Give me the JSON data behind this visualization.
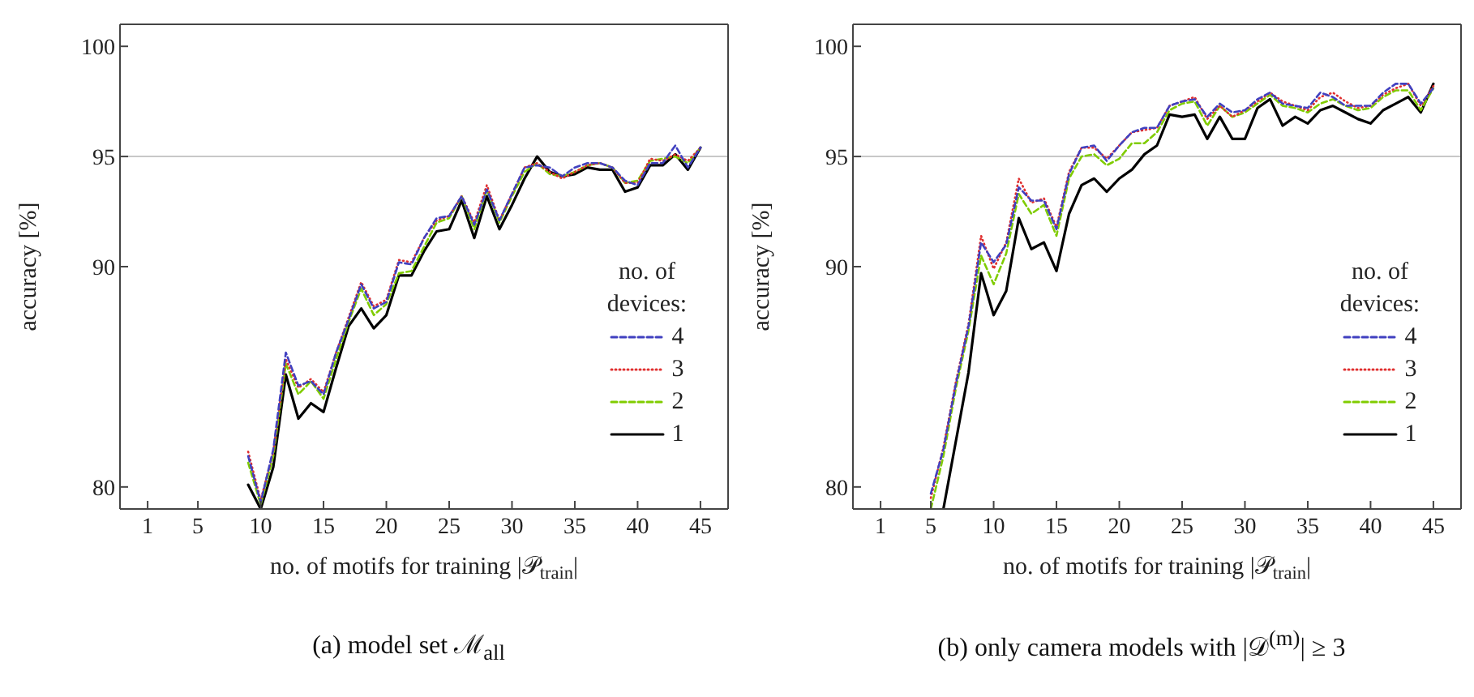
{
  "chart_data": [
    {
      "type": "line",
      "title": "(a) model set ℳ$_{all}$",
      "xlabel": "no. of motifs for training |𝒫$_{train}$|",
      "ylabel": "accuracy [%]",
      "legend_title": "no. of devices:",
      "legend": "bottom right",
      "marker": "none",
      "xlim": [
        -1.2,
        47.2
      ],
      "xticks": [
        1,
        5,
        10,
        15,
        20,
        25,
        30,
        35,
        40,
        45
      ],
      "ylim": [
        79,
        101
      ],
      "yticks": [
        80,
        90,
        95,
        100
      ],
      "ref_lines": [
        {
          "axis": "y",
          "value": 95,
          "color": "#c8c8c8"
        }
      ],
      "series": [
        {
          "name": "4",
          "color": "#4040c0",
          "line_style": "dashed",
          "x": [
            9,
            10,
            11,
            12,
            13,
            14,
            15,
            16,
            17,
            18,
            19,
            20,
            21,
            22,
            23,
            24,
            25,
            26,
            27,
            28,
            29,
            30,
            31,
            32,
            33,
            34,
            35,
            36,
            37,
            38,
            39,
            40,
            41,
            42,
            43,
            44,
            45
          ],
          "values": [
            81.4,
            79.3,
            81.7,
            86.1,
            84.6,
            84.8,
            84.2,
            86.1,
            87.6,
            89.2,
            88.1,
            88.4,
            90.2,
            90.1,
            91.3,
            92.2,
            92.3,
            93.2,
            91.9,
            93.5,
            92.1,
            93.3,
            94.5,
            94.6,
            94.5,
            94.1,
            94.5,
            94.7,
            94.7,
            94.5,
            93.9,
            93.7,
            94.7,
            94.7,
            95.5,
            94.5,
            95.4
          ]
        },
        {
          "name": "3",
          "color": "#e03030",
          "line_style": "dotted",
          "x": [
            9,
            10,
            11,
            12,
            13,
            14,
            15,
            16,
            17,
            18,
            19,
            20,
            21,
            22,
            23,
            24,
            25,
            26,
            27,
            28,
            29,
            30,
            31,
            32,
            33,
            34,
            35,
            36,
            37,
            38,
            39,
            40,
            41,
            42,
            43,
            44,
            45
          ],
          "values": [
            81.6,
            79.4,
            81.6,
            85.8,
            84.5,
            84.9,
            84.3,
            86.1,
            87.7,
            89.3,
            88.2,
            88.5,
            90.3,
            90.2,
            91.3,
            92.1,
            92.3,
            93.2,
            92.0,
            93.7,
            92.1,
            93.3,
            94.5,
            94.7,
            94.3,
            94.0,
            94.3,
            94.6,
            94.7,
            94.5,
            93.8,
            93.8,
            94.9,
            94.8,
            95.1,
            94.8,
            95.4
          ]
        },
        {
          "name": "2",
          "color": "#80cc00",
          "line_style": "dashed",
          "x": [
            9,
            10,
            11,
            12,
            13,
            14,
            15,
            16,
            17,
            18,
            19,
            20,
            21,
            22,
            23,
            24,
            25,
            26,
            27,
            28,
            29,
            30,
            31,
            32,
            33,
            34,
            35,
            36,
            37,
            38,
            39,
            40,
            41,
            42,
            43,
            44,
            45
          ],
          "values": [
            81.1,
            79.2,
            81.4,
            85.6,
            84.2,
            84.8,
            84.0,
            85.8,
            87.5,
            89.0,
            87.8,
            88.3,
            89.7,
            89.8,
            90.9,
            92.0,
            92.2,
            93.2,
            91.7,
            93.5,
            92.0,
            93.2,
            94.3,
            94.7,
            94.2,
            94.1,
            94.3,
            94.6,
            94.7,
            94.5,
            93.8,
            93.9,
            94.8,
            94.9,
            95.0,
            94.7,
            95.4
          ]
        },
        {
          "name": "1",
          "color": "#000000",
          "line_style": "solid",
          "x": [
            9,
            10,
            11,
            12,
            13,
            14,
            15,
            16,
            17,
            18,
            19,
            20,
            21,
            22,
            23,
            24,
            25,
            26,
            27,
            28,
            29,
            30,
            31,
            32,
            33,
            34,
            35,
            36,
            37,
            38,
            39,
            40,
            41,
            42,
            43,
            44,
            45
          ],
          "values": [
            80.1,
            79.0,
            80.9,
            85.1,
            83.1,
            83.8,
            83.4,
            85.4,
            87.3,
            88.1,
            87.2,
            87.8,
            89.6,
            89.6,
            90.7,
            91.6,
            91.7,
            93.0,
            91.3,
            93.2,
            91.7,
            92.8,
            94.0,
            95.0,
            94.3,
            94.1,
            94.2,
            94.5,
            94.4,
            94.4,
            93.4,
            93.6,
            94.6,
            94.6,
            95.1,
            94.4,
            95.4
          ]
        }
      ]
    },
    {
      "type": "line",
      "title": "(b) only camera models with |𝒟$^{(m)}$| ≥ 3",
      "xlabel": "no. of motifs for training |𝒫$_{train}$|",
      "ylabel": "accuracy [%]",
      "legend_title": "no. of devices:",
      "legend": "bottom right",
      "marker": "none",
      "xlim": [
        -1.2,
        47.2
      ],
      "xticks": [
        1,
        5,
        10,
        15,
        20,
        25,
        30,
        35,
        40,
        45
      ],
      "ylim": [
        79,
        101
      ],
      "yticks": [
        80,
        90,
        95,
        100
      ],
      "ref_lines": [
        {
          "axis": "y",
          "value": 95,
          "color": "#c8c8c8"
        }
      ],
      "series": [
        {
          "name": "4",
          "color": "#4040c0",
          "line_style": "dashed",
          "x": [
            5,
            6,
            7,
            8,
            9,
            10,
            11,
            12,
            13,
            14,
            15,
            16,
            17,
            18,
            19,
            20,
            21,
            22,
            23,
            24,
            25,
            26,
            27,
            28,
            29,
            30,
            31,
            32,
            33,
            34,
            35,
            36,
            37,
            38,
            39,
            40,
            41,
            42,
            43,
            44,
            45
          ],
          "values": [
            79.7,
            81.7,
            84.7,
            87.3,
            91.1,
            90.2,
            91.0,
            93.6,
            93.0,
            93.0,
            91.7,
            94.2,
            95.4,
            95.5,
            94.8,
            95.5,
            96.1,
            96.3,
            96.3,
            97.3,
            97.5,
            97.6,
            96.8,
            97.4,
            97.0,
            97.1,
            97.6,
            97.9,
            97.4,
            97.3,
            97.2,
            97.9,
            97.7,
            97.3,
            97.3,
            97.3,
            97.9,
            98.3,
            98.3,
            97.4,
            98.1
          ]
        },
        {
          "name": "3",
          "color": "#e03030",
          "line_style": "dotted",
          "x": [
            5,
            6,
            7,
            8,
            9,
            10,
            11,
            12,
            13,
            14,
            15,
            16,
            17,
            18,
            19,
            20,
            21,
            22,
            23,
            24,
            25,
            26,
            27,
            28,
            29,
            30,
            31,
            32,
            33,
            34,
            35,
            36,
            37,
            38,
            39,
            40,
            41,
            42,
            43,
            44,
            45
          ],
          "values": [
            79.5,
            81.8,
            84.8,
            87.4,
            91.4,
            89.9,
            91.1,
            94.0,
            92.9,
            93.1,
            91.8,
            94.3,
            95.4,
            95.4,
            94.9,
            95.5,
            96.1,
            96.2,
            96.3,
            97.3,
            97.5,
            97.7,
            96.7,
            97.3,
            96.8,
            97.1,
            97.5,
            97.9,
            97.5,
            97.3,
            97.1,
            97.7,
            97.9,
            97.5,
            97.2,
            97.3,
            97.8,
            98.1,
            98.3,
            97.3,
            98.2
          ]
        },
        {
          "name": "2",
          "color": "#80cc00",
          "line_style": "dashed",
          "x": [
            5,
            6,
            7,
            8,
            9,
            10,
            11,
            12,
            13,
            14,
            15,
            16,
            17,
            18,
            19,
            20,
            21,
            22,
            23,
            24,
            25,
            26,
            27,
            28,
            29,
            30,
            31,
            32,
            33,
            34,
            35,
            36,
            37,
            38,
            39,
            40,
            41,
            42,
            43,
            44,
            45
          ],
          "values": [
            79.0,
            81.4,
            84.5,
            87.1,
            90.5,
            89.2,
            90.6,
            93.3,
            92.4,
            92.8,
            91.4,
            94.0,
            95.0,
            95.1,
            94.6,
            94.9,
            95.6,
            95.6,
            96.1,
            97.1,
            97.4,
            97.5,
            96.4,
            97.3,
            96.8,
            97.0,
            97.4,
            97.8,
            97.3,
            97.2,
            97.0,
            97.4,
            97.6,
            97.3,
            97.1,
            97.2,
            97.7,
            98.0,
            98.0,
            97.1,
            98.1
          ]
        },
        {
          "name": "1",
          "color": "#000000",
          "line_style": "solid",
          "x": [
            6,
            7,
            8,
            9,
            10,
            11,
            12,
            13,
            14,
            15,
            16,
            17,
            18,
            19,
            20,
            21,
            22,
            23,
            24,
            25,
            26,
            27,
            28,
            29,
            30,
            31,
            32,
            33,
            34,
            35,
            36,
            37,
            38,
            39,
            40,
            41,
            42,
            43,
            44,
            45
          ],
          "values": [
            79.0,
            82.1,
            85.2,
            89.7,
            87.8,
            88.9,
            92.2,
            90.8,
            91.1,
            89.8,
            92.4,
            93.7,
            94.0,
            93.4,
            94.0,
            94.4,
            95.1,
            95.5,
            96.9,
            96.8,
            96.9,
            95.8,
            96.8,
            95.8,
            95.8,
            97.2,
            97.6,
            96.4,
            96.8,
            96.5,
            97.1,
            97.3,
            97.0,
            96.7,
            96.5,
            97.1,
            97.4,
            97.7,
            97.0,
            98.3
          ]
        }
      ]
    }
  ]
}
